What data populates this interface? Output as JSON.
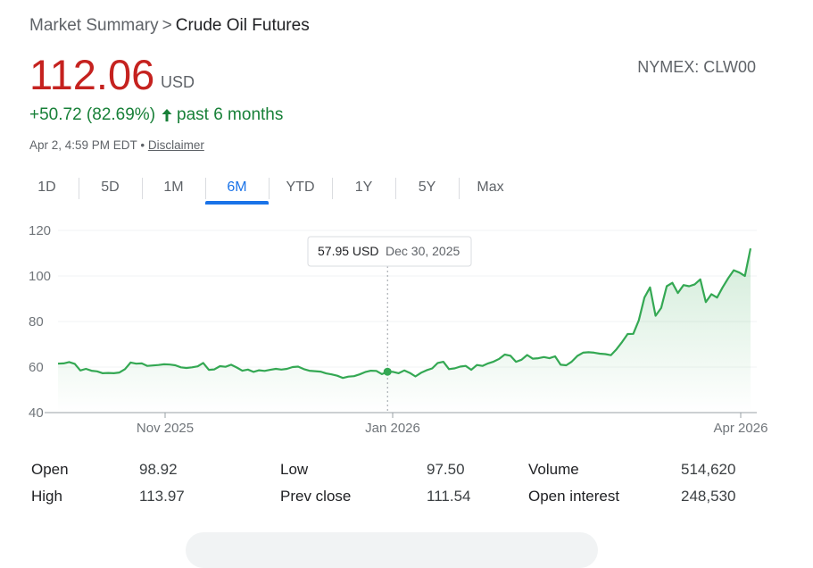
{
  "breadcrumb": {
    "parent": "Market Summary",
    "separator": ">",
    "current": "Crude Oil Futures"
  },
  "quote": {
    "price": "112.06",
    "currency": "USD",
    "exchange": "NYMEX: CLW00",
    "change": "+50.72 (82.69%)",
    "period": "past 6 months",
    "timestamp": "Apr 2, 4:59 PM EDT",
    "timestamp_sep": "•",
    "disclaimer": "Disclaimer"
  },
  "colors": {
    "up": "#188038",
    "price": "#c5221f",
    "accent": "#1a73e8",
    "line": "#34a853"
  },
  "tabs": [
    {
      "label": "1D",
      "active": false
    },
    {
      "label": "5D",
      "active": false
    },
    {
      "label": "1M",
      "active": false
    },
    {
      "label": "6M",
      "active": true
    },
    {
      "label": "YTD",
      "active": false
    },
    {
      "label": "1Y",
      "active": false
    },
    {
      "label": "5Y",
      "active": false
    },
    {
      "label": "Max",
      "active": false
    }
  ],
  "tooltip": {
    "value": "57.95 USD",
    "date": "Dec 30, 2025"
  },
  "chart_data": {
    "type": "area",
    "x_ticks": [
      "Nov 2025",
      "Jan 2026",
      "Apr 2026"
    ],
    "y_ticks": [
      40,
      60,
      80,
      100,
      120
    ],
    "ylim": [
      40,
      120
    ],
    "grid": true,
    "series": [
      {
        "values": [
          61.5,
          61.6,
          62.2,
          61.4,
          58.5,
          59.2,
          58.4,
          58.1,
          57.3,
          57.4,
          57.3,
          57.6,
          59.1,
          62.0,
          61.5,
          61.6,
          60.5,
          60.7,
          60.9,
          61.2,
          61.1,
          60.8,
          59.9,
          59.6,
          59.9,
          60.3,
          61.8,
          58.8,
          59.0,
          60.4,
          60.1,
          61.0,
          59.8,
          58.4,
          58.9,
          57.9,
          58.6,
          58.3,
          58.8,
          59.2,
          58.9,
          59.2,
          60.0,
          60.2,
          59.1,
          58.4,
          58.2,
          58.0,
          57.2,
          56.8,
          56.2,
          55.2,
          55.8,
          56.0,
          56.8,
          57.8,
          58.4,
          58.3,
          56.9,
          57.95,
          57.9,
          57.3,
          58.5,
          57.4,
          55.9,
          57.5,
          58.6,
          59.4,
          61.8,
          62.3,
          59.1,
          59.4,
          60.2,
          60.5,
          58.8,
          60.9,
          60.5,
          61.6,
          62.4,
          63.6,
          65.5,
          65.0,
          62.3,
          63.2,
          65.3,
          63.7,
          63.9,
          64.4,
          63.9,
          64.7,
          61.0,
          60.8,
          62.4,
          64.9,
          66.3,
          66.5,
          66.3,
          65.9,
          65.7,
          65.2,
          67.8,
          71.0,
          74.5,
          74.6,
          80.5,
          90.5,
          95.0,
          82.5,
          86.0,
          95.5,
          97.0,
          92.5,
          96.0,
          95.5,
          96.3,
          98.5,
          88.5,
          92.0,
          90.5,
          95.0,
          99.0,
          102.5,
          101.5,
          100.0,
          112.06
        ]
      }
    ]
  },
  "stats": {
    "open_label": "Open",
    "open_value": "98.92",
    "high_label": "High",
    "high_value": "113.97",
    "low_label": "Low",
    "low_value": "97.50",
    "prev_close_label": "Prev close",
    "prev_close_value": "111.54",
    "volume_label": "Volume",
    "volume_value": "514,620",
    "open_interest_label": "Open interest",
    "open_interest_value": "248,530"
  }
}
